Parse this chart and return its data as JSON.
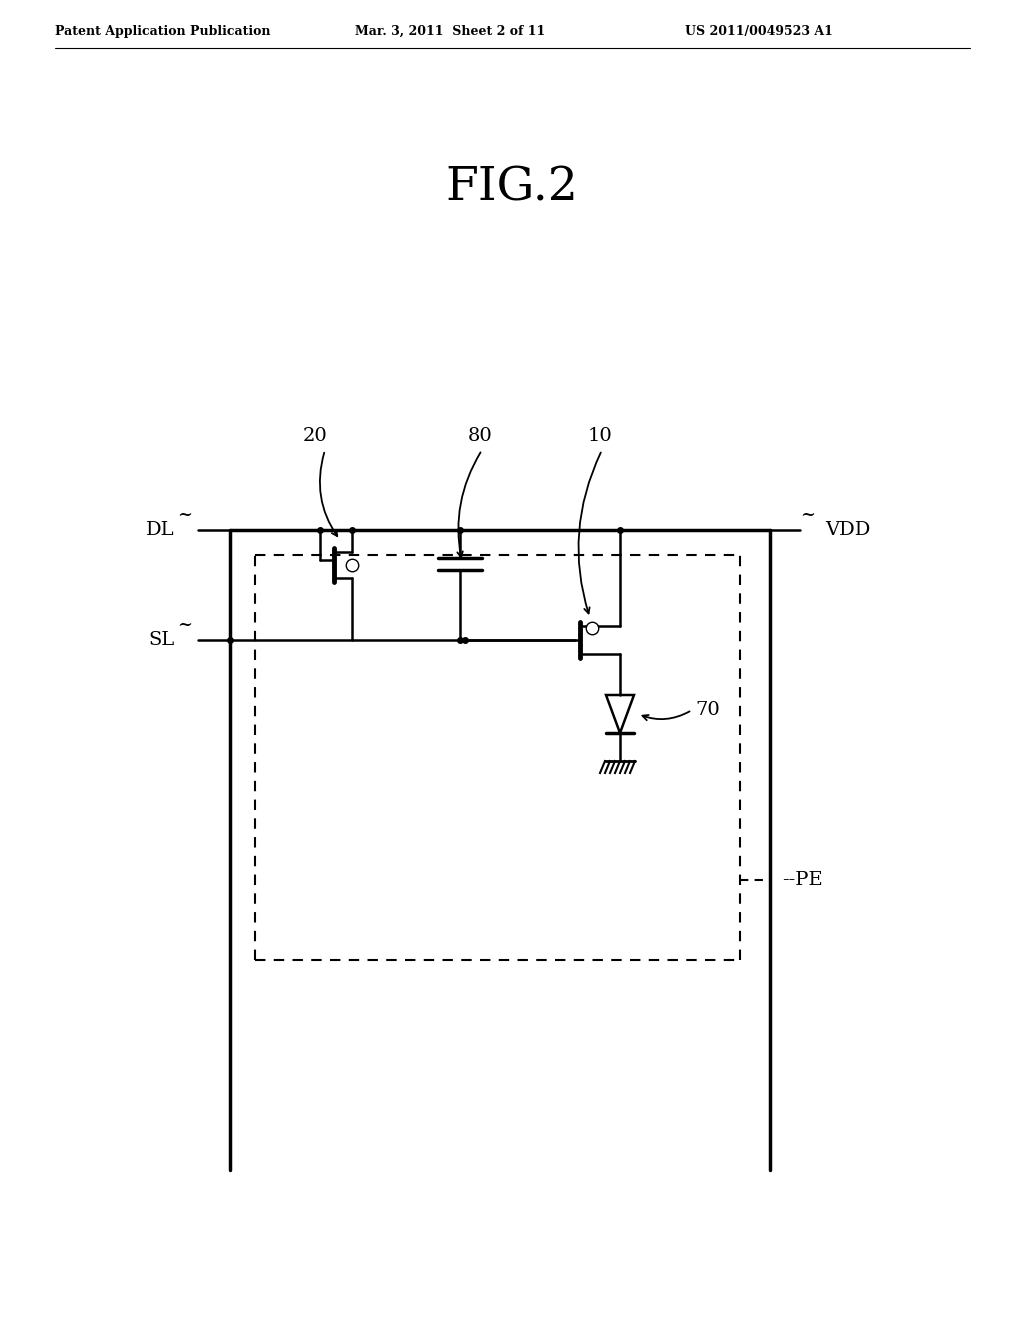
{
  "bg_color": "#ffffff",
  "lc": "#000000",
  "header_left": "Patent Application Publication",
  "header_mid": "Mar. 3, 2011  Sheet 2 of 11",
  "header_right": "US 2011/0049523 A1",
  "fig_title": "FIG.2",
  "lbl_DL": "DL",
  "lbl_SL": "SL",
  "lbl_VDD": "VDD",
  "lbl_PE": "--PE",
  "lbl_20": "20",
  "lbl_80": "80",
  "lbl_10": "10",
  "lbl_70": "70",
  "fig_w": 10.24,
  "fig_h": 13.2
}
